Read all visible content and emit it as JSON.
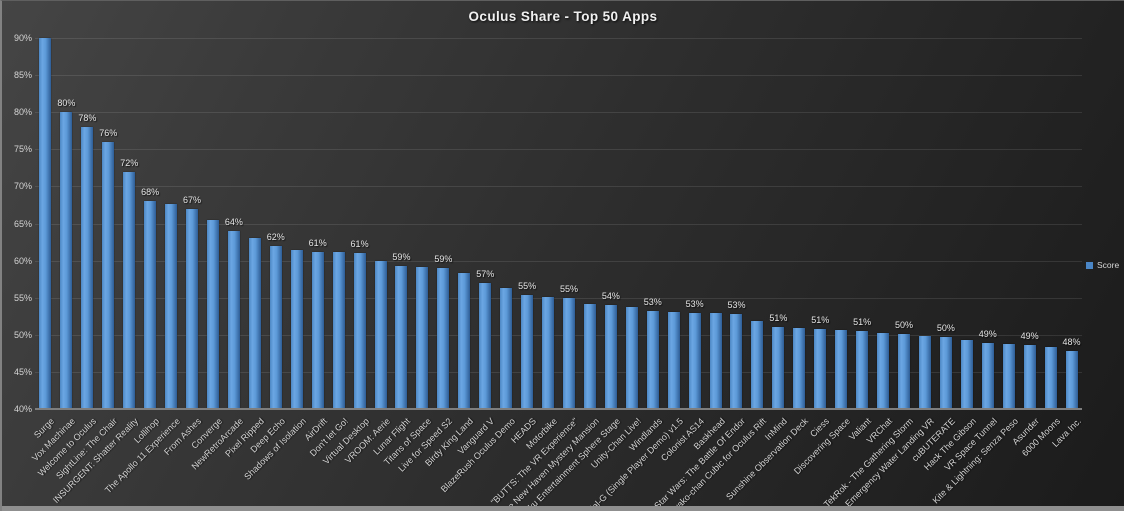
{
  "title": "Oculus Share - Top 50 Apps",
  "legend": {
    "label": "Score",
    "swatch_color": "#4a86c6"
  },
  "chart_data": {
    "type": "bar",
    "title": "Oculus Share - Top 50 Apps",
    "xlabel": "",
    "ylabel": "",
    "ylim": [
      40,
      90
    ],
    "ytick_step": 5,
    "yticks": [
      "90%",
      "85%",
      "80%",
      "75%",
      "70%",
      "65%",
      "60%",
      "55%",
      "50%",
      "45%",
      "40%"
    ],
    "grid": true,
    "legend_position": "right",
    "bar_color": "#4a86c6",
    "background_color": "#2d2d2d",
    "categories": [
      "Surge",
      "Vox Machinae",
      "Welcome to Oculus",
      "SightLine: The Chair",
      "INSURGENT: Shatter Reality",
      "Lollihop",
      "The Apollo 11 Experience",
      "From Ashes",
      "Converge",
      "NewRetroArcade",
      "Pixel Ripped",
      "Deep Echo",
      "Shadows of Isolation",
      "AirDrift",
      "Don't let Go!",
      "Virtual Desktop",
      "VROOM: Aerie",
      "Lunar Flight",
      "Titans of Space",
      "Live for Speed S2",
      "Birdy King Land",
      "Vanguard V",
      "BlazeRush Oculus Demo",
      "HEADS",
      "Motorbike",
      "\"BUTTS: The VR Experience\"",
      "The New Haven Mystery Mansion",
      "Miku Entertainment Sphere Stage",
      "Unity-Chan Live!",
      "Windlands",
      "Radial-G (Single Player Demo) v1.5",
      "Colonist AS14",
      "Baskhead",
      "Star Wars: The Battle Of Endor",
      "Suwako-chan Cubic for Oculus Rift",
      "InMind",
      "Sunshine Observation Deck",
      "Ciess",
      "Discovering Space",
      "Valiant",
      "VRChat",
      "TekRok - The Gathering Storm",
      "Emergency Water Landing VR",
      "cuBUTERATE",
      "Hack The Gibson",
      "VR Space Tunnel",
      "Kite & Lightning: Senza Peso",
      "Asunder",
      "6000 Moons",
      "Lava Inc."
    ],
    "series": [
      {
        "name": "Score",
        "values": [
          90,
          80,
          78,
          76,
          72,
          68,
          67.6,
          67,
          65.5,
          64,
          63,
          62,
          61.4,
          61.2,
          61.1,
          61,
          60,
          59.3,
          59.1,
          59,
          58.3,
          57,
          56.3,
          55.3,
          55.1,
          55,
          54.2,
          54,
          53.8,
          53.2,
          53.1,
          53,
          52.9,
          52.8,
          51.8,
          51.1,
          50.9,
          50.8,
          50.6,
          50.5,
          50.2,
          50.1,
          49.8,
          49.7,
          49.3,
          48.9,
          48.7,
          48.6,
          48.3,
          47.8
        ]
      }
    ],
    "data_labels": [
      null,
      "80%",
      "78%",
      "76%",
      "72%",
      "68%",
      null,
      "67%",
      null,
      "64%",
      null,
      "62%",
      null,
      "61%",
      null,
      "61%",
      null,
      "59%",
      null,
      "59%",
      null,
      "57%",
      null,
      "55%",
      null,
      "55%",
      null,
      "54%",
      null,
      "53%",
      null,
      "53%",
      null,
      "53%",
      null,
      "51%",
      null,
      "51%",
      null,
      "51%",
      null,
      "50%",
      null,
      "50%",
      null,
      "49%",
      null,
      "49%",
      null,
      "48%"
    ]
  }
}
